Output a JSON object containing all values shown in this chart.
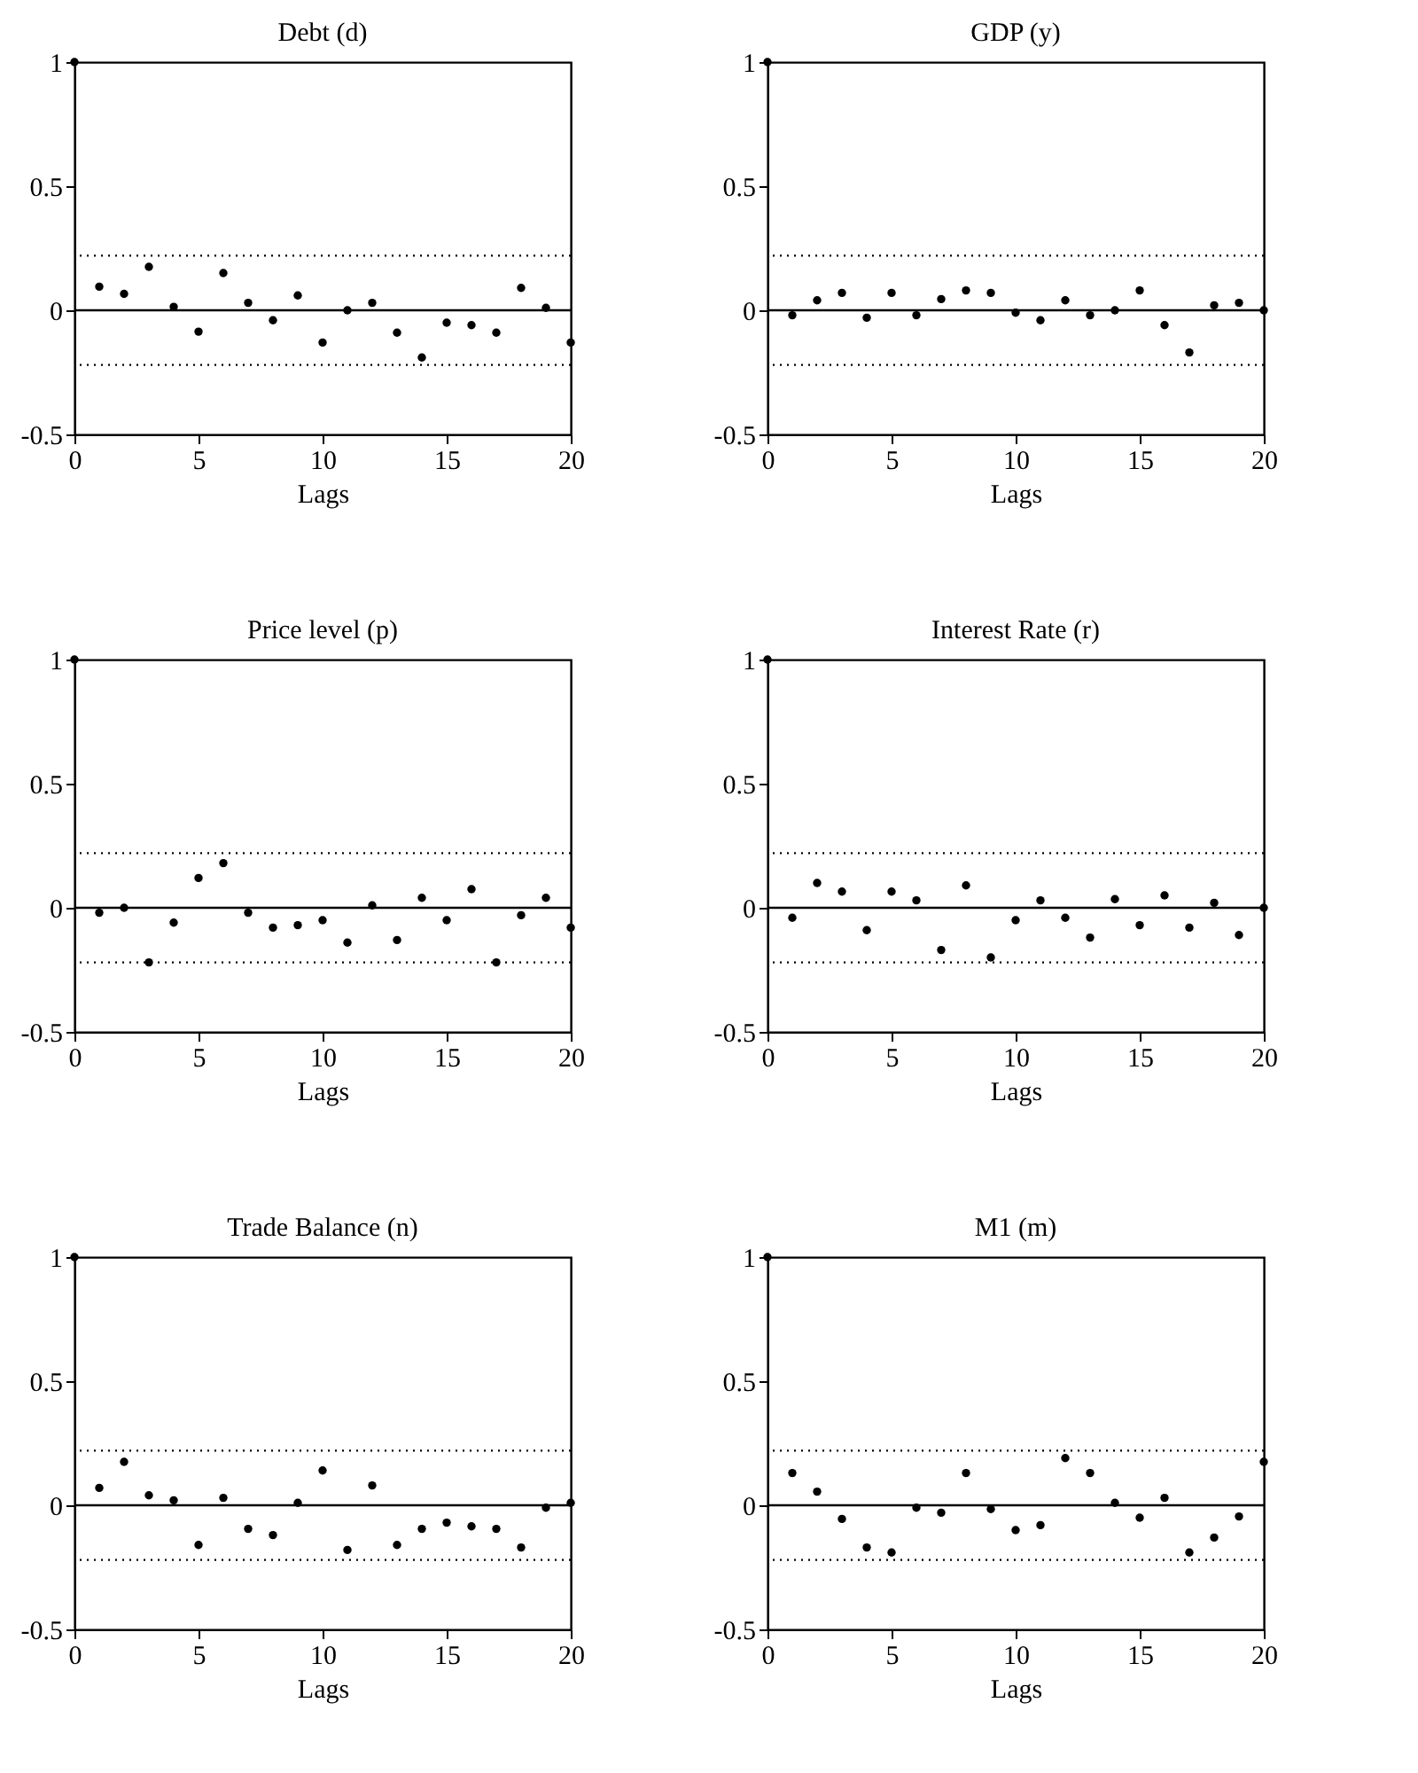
{
  "chart_data": [
    {
      "type": "scatter",
      "title": "Debt (d)",
      "xlabel": "Lags",
      "x": [
        0,
        1,
        2,
        3,
        4,
        5,
        6,
        7,
        8,
        9,
        10,
        11,
        12,
        13,
        14,
        15,
        16,
        17,
        18,
        19,
        20
      ],
      "values": [
        1,
        0.095,
        0.066,
        0.175,
        0.014,
        -0.086,
        0.15,
        0.03,
        -0.04,
        0.06,
        -0.13,
        0.0,
        0.03,
        -0.09,
        -0.19,
        -0.05,
        -0.06,
        -0.09,
        0.09,
        0.01,
        -0.13
      ],
      "color": "#000000",
      "marker": "circle",
      "xlim": [
        0,
        20
      ],
      "xticks": [
        0,
        5,
        10,
        15,
        20
      ],
      "ylim": [
        -0.5,
        1
      ],
      "yticks": [
        -0.5,
        0,
        0.5,
        1
      ],
      "grid": false,
      "ref_lines": [
        {
          "axis": "y",
          "value": 0,
          "line_style": "solid",
          "color": "#000000"
        },
        {
          "axis": "y",
          "value": 0.22,
          "line_style": "dotted",
          "color": "#000000"
        },
        {
          "axis": "y",
          "value": -0.22,
          "line_style": "dotted",
          "color": "#000000"
        }
      ]
    },
    {
      "type": "scatter",
      "title": "GDP (y)",
      "xlabel": "Lags",
      "x": [
        0,
        1,
        2,
        3,
        4,
        5,
        6,
        7,
        8,
        9,
        10,
        11,
        12,
        13,
        14,
        15,
        16,
        17,
        18,
        19,
        20
      ],
      "values": [
        1,
        -0.02,
        0.04,
        0.07,
        -0.03,
        0.07,
        -0.02,
        0.045,
        0.08,
        0.07,
        -0.01,
        -0.04,
        0.04,
        -0.02,
        0.0,
        0.08,
        -0.06,
        -0.17,
        0.02,
        0.03,
        0.0
      ],
      "color": "#000000",
      "marker": "circle",
      "xlim": [
        0,
        20
      ],
      "xticks": [
        0,
        5,
        10,
        15,
        20
      ],
      "ylim": [
        -0.5,
        1
      ],
      "yticks": [
        -0.5,
        0,
        0.5,
        1
      ],
      "grid": false,
      "ref_lines": [
        {
          "axis": "y",
          "value": 0,
          "line_style": "solid",
          "color": "#000000"
        },
        {
          "axis": "y",
          "value": 0.22,
          "line_style": "dotted",
          "color": "#000000"
        },
        {
          "axis": "y",
          "value": -0.22,
          "line_style": "dotted",
          "color": "#000000"
        }
      ]
    },
    {
      "type": "scatter",
      "title": "Price level (p)",
      "xlabel": "Lags",
      "x": [
        0,
        1,
        2,
        3,
        4,
        5,
        6,
        7,
        8,
        9,
        10,
        11,
        12,
        13,
        14,
        15,
        16,
        17,
        18,
        19,
        20
      ],
      "values": [
        1,
        -0.02,
        0.0,
        -0.22,
        -0.06,
        0.12,
        0.18,
        -0.02,
        -0.08,
        -0.07,
        -0.05,
        -0.14,
        0.01,
        -0.13,
        0.04,
        -0.05,
        0.075,
        -0.22,
        -0.03,
        0.04,
        -0.08
      ],
      "color": "#000000",
      "marker": "circle",
      "xlim": [
        0,
        20
      ],
      "xticks": [
        0,
        5,
        10,
        15,
        20
      ],
      "ylim": [
        -0.5,
        1
      ],
      "yticks": [
        -0.5,
        0,
        0.5,
        1
      ],
      "grid": false,
      "ref_lines": [
        {
          "axis": "y",
          "value": 0,
          "line_style": "solid",
          "color": "#000000"
        },
        {
          "axis": "y",
          "value": 0.22,
          "line_style": "dotted",
          "color": "#000000"
        },
        {
          "axis": "y",
          "value": -0.22,
          "line_style": "dotted",
          "color": "#000000"
        }
      ]
    },
    {
      "type": "scatter",
      "title": "Interest Rate (r)",
      "xlabel": "Lags",
      "x": [
        0,
        1,
        2,
        3,
        4,
        5,
        6,
        7,
        8,
        9,
        10,
        11,
        12,
        13,
        14,
        15,
        16,
        17,
        18,
        19,
        20
      ],
      "values": [
        1,
        -0.04,
        0.1,
        0.065,
        -0.09,
        0.065,
        0.03,
        -0.17,
        0.09,
        -0.2,
        -0.05,
        0.03,
        -0.04,
        -0.12,
        0.035,
        -0.07,
        0.05,
        -0.08,
        0.02,
        -0.11,
        0.0
      ],
      "color": "#000000",
      "marker": "circle",
      "xlim": [
        0,
        20
      ],
      "xticks": [
        0,
        5,
        10,
        15,
        20
      ],
      "ylim": [
        -0.5,
        1
      ],
      "yticks": [
        -0.5,
        0,
        0.5,
        1
      ],
      "grid": false,
      "ref_lines": [
        {
          "axis": "y",
          "value": 0,
          "line_style": "solid",
          "color": "#000000"
        },
        {
          "axis": "y",
          "value": 0.22,
          "line_style": "dotted",
          "color": "#000000"
        },
        {
          "axis": "y",
          "value": -0.22,
          "line_style": "dotted",
          "color": "#000000"
        }
      ]
    },
    {
      "type": "scatter",
      "title": "Trade Balance (n)",
      "xlabel": "Lags",
      "x": [
        0,
        1,
        2,
        3,
        4,
        5,
        6,
        7,
        8,
        9,
        10,
        11,
        12,
        13,
        14,
        15,
        16,
        17,
        18,
        19,
        20
      ],
      "values": [
        1,
        0.07,
        0.175,
        0.04,
        0.02,
        -0.16,
        0.03,
        -0.095,
        -0.12,
        0.01,
        0.14,
        -0.18,
        0.08,
        -0.16,
        -0.095,
        -0.07,
        -0.085,
        -0.095,
        -0.17,
        -0.01,
        0.01
      ],
      "color": "#000000",
      "marker": "circle",
      "xlim": [
        0,
        20
      ],
      "xticks": [
        0,
        5,
        10,
        15,
        20
      ],
      "ylim": [
        -0.5,
        1
      ],
      "yticks": [
        -0.5,
        0,
        0.5,
        1
      ],
      "grid": false,
      "ref_lines": [
        {
          "axis": "y",
          "value": 0,
          "line_style": "solid",
          "color": "#000000"
        },
        {
          "axis": "y",
          "value": 0.22,
          "line_style": "dotted",
          "color": "#000000"
        },
        {
          "axis": "y",
          "value": -0.22,
          "line_style": "dotted",
          "color": "#000000"
        }
      ]
    },
    {
      "type": "scatter",
      "title": "M1 (m)",
      "xlabel": "Lags",
      "x": [
        0,
        1,
        2,
        3,
        4,
        5,
        6,
        7,
        8,
        9,
        10,
        11,
        12,
        13,
        14,
        15,
        16,
        17,
        18,
        19,
        20
      ],
      "values": [
        1,
        0.13,
        0.055,
        -0.055,
        -0.17,
        -0.19,
        -0.01,
        -0.03,
        0.13,
        -0.015,
        -0.1,
        -0.08,
        0.19,
        0.13,
        0.01,
        -0.05,
        0.03,
        -0.19,
        -0.13,
        -0.045,
        0.175
      ],
      "color": "#000000",
      "marker": "circle",
      "xlim": [
        0,
        20
      ],
      "xticks": [
        0,
        5,
        10,
        15,
        20
      ],
      "ylim": [
        -0.5,
        1
      ],
      "yticks": [
        -0.5,
        0,
        0.5,
        1
      ],
      "grid": false,
      "ref_lines": [
        {
          "axis": "y",
          "value": 0,
          "line_style": "solid",
          "color": "#000000"
        },
        {
          "axis": "y",
          "value": 0.22,
          "line_style": "dotted",
          "color": "#000000"
        },
        {
          "axis": "y",
          "value": -0.22,
          "line_style": "dotted",
          "color": "#000000"
        }
      ]
    }
  ]
}
